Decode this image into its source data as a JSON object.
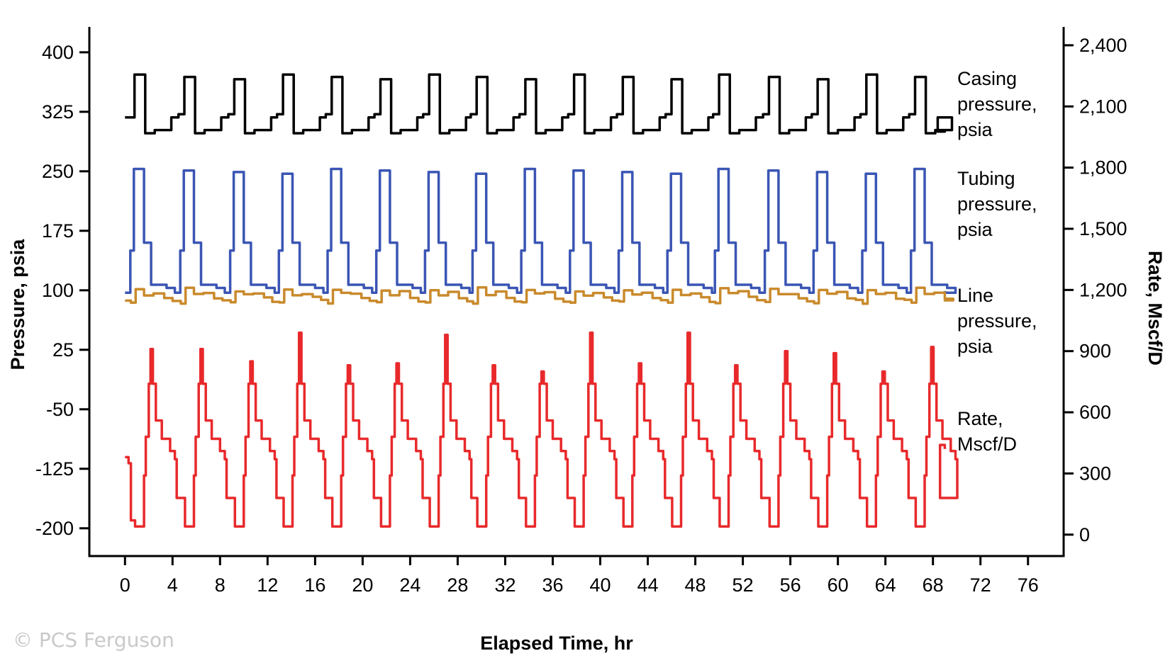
{
  "chart_data": {
    "type": "line",
    "xlabel": "Elapsed Time, hr",
    "ylabel": "Pressure, psia",
    "y2label": "Rate, Mscf/D",
    "xlim": [
      -3,
      79
    ],
    "ylim": [
      -235,
      432
    ],
    "y2lim": [
      -105,
      2490
    ],
    "x_ticks": [
      0,
      4,
      8,
      12,
      16,
      20,
      24,
      28,
      32,
      36,
      40,
      44,
      48,
      52,
      56,
      60,
      64,
      68,
      72,
      76
    ],
    "x_tick_labels": [
      "0",
      "4",
      "8",
      "12",
      "16",
      "20",
      "24",
      "28",
      "32",
      "36",
      "40",
      "44",
      "48",
      "52",
      "56",
      "60",
      "64",
      "68",
      "72",
      "76"
    ],
    "y_ticks": [
      400,
      325,
      250,
      175,
      100,
      25,
      -50,
      -125,
      -200
    ],
    "y_tick_labels": [
      "400",
      "325",
      "250",
      "175",
      "100",
      "25",
      "-50",
      "-125",
      "-200"
    ],
    "y2_ticks": [
      2400,
      2100,
      1800,
      1500,
      1200,
      900,
      600,
      300,
      0
    ],
    "y2_tick_labels": [
      "2,400",
      "2,100",
      "1,800",
      "1,500",
      "1,200",
      "900",
      "600",
      "300",
      "0"
    ],
    "grid": false,
    "cycle_starts_hr": [
      0.3,
      4.5,
      8.7,
      12.8,
      16.9,
      21.0,
      25.1,
      29.1,
      33.2,
      37.3,
      41.4,
      45.5,
      49.5,
      53.7,
      57.8,
      61.9,
      66.0
    ],
    "series": [
      {
        "name": "Casing pressure, psia",
        "axis": "left",
        "color": "#000000",
        "label_lines": [
          "Casing",
          "pressure,",
          "psia"
        ],
        "base": 298,
        "peak": 372,
        "pre_peak": 322,
        "end_x": 69.0,
        "end_value": 302
      },
      {
        "name": "Tubing pressure, psia",
        "axis": "left",
        "color": "#3a55b4",
        "label_lines": [
          "Tubing",
          "pressure,",
          "psia"
        ],
        "base": 97,
        "peak": 253,
        "plateau": 103,
        "end_x": 69.0,
        "end_value": 99
      },
      {
        "name": "Line pressure, psia",
        "axis": "left",
        "color": "#c98a2c",
        "label_lines": [
          "Line",
          "pressure,",
          "psia"
        ],
        "base": 87,
        "peak": 98,
        "end_x": 69.0,
        "end_value": 88
      },
      {
        "name": "Rate, Mscf/D",
        "axis": "right",
        "color": "#e8292b",
        "label_lines": [
          "Rate,",
          "Mscf/D"
        ],
        "low": 40,
        "plateau": 410,
        "peaks": [
          910,
          910,
          850,
          990,
          830,
          840,
          980,
          830,
          800,
          990,
          840,
          990,
          830,
          900,
          890,
          800,
          920
        ],
        "end_x": 69.0,
        "end_value": 420
      }
    ]
  },
  "watermark": "© PCS Ferguson"
}
